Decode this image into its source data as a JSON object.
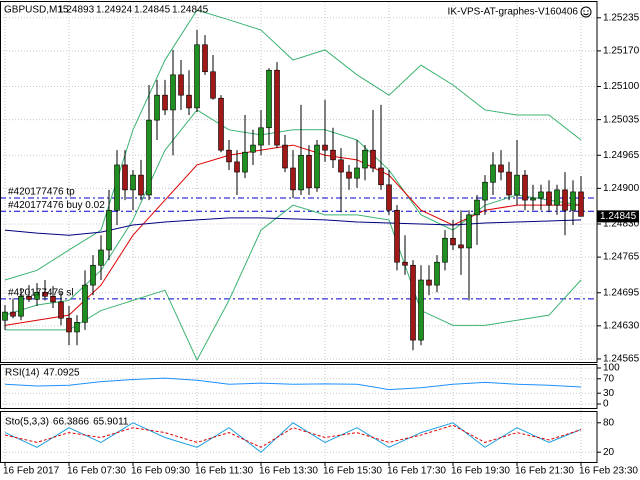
{
  "chart_data": [
    {
      "type": "candlestick",
      "title": "GBPUSD,M15",
      "watermark": "IK-VPS-AT-graphes-V160406",
      "categories": [
        "16 Feb 2017",
        null,
        null,
        null,
        null,
        null,
        null,
        null,
        "16 Feb 07:30",
        null,
        null,
        null,
        null,
        null,
        null,
        null,
        "16 Feb 09:30",
        null,
        null,
        null,
        null,
        null,
        null,
        null,
        "16 Feb 11:30",
        null,
        null,
        null,
        null,
        null,
        null,
        null,
        "16 Feb 13:30",
        null,
        null,
        null,
        null,
        null,
        null,
        null,
        "16 Feb 15:30",
        null,
        null,
        null,
        null,
        null,
        null,
        null,
        "16 Feb 17:30",
        null,
        null,
        null,
        null,
        null,
        null,
        null,
        "16 Feb 19:30",
        null,
        null,
        null,
        null,
        null,
        null,
        null,
        "16 Feb 21:30",
        null,
        null,
        null,
        null,
        null,
        null,
        null,
        "16 Feb 23:30"
      ],
      "open": [
        1.24641,
        1.24657,
        1.24649,
        1.24688,
        1.24682,
        1.24696,
        1.24688,
        1.24677,
        1.24645,
        1.24618,
        1.24637,
        1.2471,
        1.24749,
        1.24779,
        1.24857,
        1.24946,
        1.24897,
        1.24926,
        1.24887,
        1.25034,
        1.25083,
        1.25054,
        1.25123,
        1.25083,
        1.25058,
        1.25182,
        1.25129,
        1.25077,
        1.24975,
        1.24952,
        1.24932,
        1.24971,
        1.24985,
        1.25019,
        1.25132,
        1.24985,
        1.2494,
        1.24897,
        1.24965,
        1.24901,
        1.24985,
        1.24975,
        1.24956,
        1.24932,
        1.2492,
        1.2494,
        1.24975,
        1.2494,
        1.24907,
        1.24857,
        1.24755,
        1.24749,
        1.24602,
        1.2472,
        1.2471,
        1.24755,
        1.24802,
        1.24789,
        1.24783,
        1.24848,
        1.24877,
        1.24912,
        1.24946,
        1.24932,
        1.24887,
        1.24926,
        1.24877,
        1.24881,
        1.24893,
        1.24867,
        1.24897,
        1.24857,
        1.24893
      ],
      "high": [
        1.24671,
        1.24684,
        1.24704,
        1.2471,
        1.24714,
        1.2472,
        1.24708,
        1.24696,
        1.24669,
        1.24651,
        1.24739,
        1.24769,
        1.24808,
        1.24897,
        1.24975,
        1.24975,
        1.24936,
        1.24956,
        1.25103,
        1.25113,
        1.25113,
        1.25172,
        1.25152,
        1.25132,
        1.25211,
        1.25201,
        1.25162,
        1.25083,
        1.24995,
        1.24975,
        1.25044,
        1.25015,
        1.25054,
        1.25136,
        1.25148,
        1.25005,
        1.24975,
        1.25064,
        1.24985,
        1.24995,
        1.25074,
        1.25019,
        1.24979,
        1.24946,
        1.24995,
        1.24985,
        1.25054,
        1.25064,
        1.24936,
        1.24867,
        1.24808,
        1.24759,
        1.24749,
        1.24749,
        1.24769,
        1.24818,
        1.24838,
        1.24857,
        1.24857,
        1.24887,
        1.24926,
        1.24971,
        1.24975,
        1.24952,
        1.24995,
        1.24936,
        1.24907,
        1.24907,
        1.24916,
        1.24907,
        1.24932,
        1.24916,
        1.24924
      ],
      "low": [
        1.24622,
        1.24645,
        1.24641,
        1.24677,
        1.24669,
        1.2468,
        1.24665,
        1.24631,
        1.24592,
        1.24592,
        1.24622,
        1.2469,
        1.2472,
        1.24759,
        1.24828,
        1.24877,
        1.24857,
        1.24877,
        1.24877,
        1.24995,
        1.25044,
        1.24965,
        1.25054,
        1.25044,
        1.2505,
        1.25123,
        1.25074,
        1.24971,
        1.24936,
        1.24887,
        1.2492,
        1.24946,
        1.24965,
        1.24985,
        1.24979,
        1.24932,
        1.24881,
        1.24887,
        1.24887,
        1.24893,
        1.24952,
        1.2494,
        1.24853,
        1.24897,
        1.24901,
        1.24916,
        1.24932,
        1.24897,
        1.24848,
        1.24739,
        1.2473,
        1.24582,
        1.24592,
        1.2469,
        1.24696,
        1.24739,
        1.24779,
        1.2473,
        1.2468,
        1.24789,
        1.24848,
        1.24887,
        1.24916,
        1.24877,
        1.24867,
        1.24857,
        1.24857,
        1.24857,
        1.24853,
        1.24848,
        1.24808,
        1.24828,
        1.24845
      ],
      "close": [
        1.24657,
        1.24649,
        1.24688,
        1.24682,
        1.24696,
        1.24688,
        1.24677,
        1.24645,
        1.24618,
        1.24637,
        1.2471,
        1.24749,
        1.24779,
        1.24857,
        1.24946,
        1.24897,
        1.24926,
        1.24887,
        1.25034,
        1.25083,
        1.25054,
        1.25123,
        1.25083,
        1.25058,
        1.25182,
        1.25129,
        1.25077,
        1.24975,
        1.24952,
        1.24932,
        1.24971,
        1.24985,
        1.25019,
        1.25132,
        1.24985,
        1.2494,
        1.24897,
        1.24965,
        1.24901,
        1.24985,
        1.24975,
        1.24956,
        1.24932,
        1.2492,
        1.2494,
        1.24975,
        1.2494,
        1.24907,
        1.24857,
        1.24755,
        1.24749,
        1.24602,
        1.2472,
        1.2471,
        1.24755,
        1.24802,
        1.24789,
        1.24783,
        1.24848,
        1.24877,
        1.24912,
        1.24946,
        1.24932,
        1.24887,
        1.24926,
        1.24877,
        1.24881,
        1.24893,
        1.24867,
        1.24897,
        1.24857,
        1.24893,
        1.24845
      ],
      "bull_color": "#1f8f1f",
      "bear_color": "#a01818",
      "overlay_x": [
        0,
        4,
        8,
        12,
        16,
        20,
        24,
        28,
        32,
        36,
        40,
        44,
        48,
        52,
        56,
        60,
        64,
        68,
        72
      ],
      "overlays": [
        {
          "color": "#3cb371",
          "values": [
            1.2472,
            1.24739,
            1.24779,
            1.24818,
            1.25015,
            1.25152,
            1.2525,
            1.25231,
            1.25211,
            1.25152,
            1.25172,
            1.25123,
            1.25083,
            1.25142,
            1.25103,
            1.25054,
            1.25044,
            1.25044,
            1.24995
          ]
        },
        {
          "color": "#3cb371",
          "values": [
            1.24651,
            1.24671,
            1.2468,
            1.24739,
            1.24838,
            1.24975,
            1.25054,
            1.25015,
            1.25005,
            1.25015,
            1.25015,
            1.24995,
            1.24936,
            1.24848,
            1.24818,
            1.24867,
            1.24887,
            1.24877,
            1.24867
          ]
        },
        {
          "color": "#3cb371",
          "values": [
            1.24622,
            1.24622,
            1.24622,
            1.2466,
            1.2468,
            1.247,
            1.24563,
            1.2468,
            1.24818,
            1.24867,
            1.24848,
            1.24848,
            1.24838,
            1.2466,
            1.24631,
            1.24631,
            1.24641,
            1.24651,
            1.2472
          ]
        },
        {
          "color": "#e00000",
          "values": [
            1.24631,
            1.24641,
            1.24651,
            1.2471,
            1.24808,
            1.24877,
            1.24946,
            1.24965,
            1.24975,
            1.24985,
            1.24965,
            1.24956,
            1.24926,
            1.24857,
            1.24828,
            1.24857,
            1.24867,
            1.24867,
            1.24867
          ]
        },
        {
          "color": "#000080",
          "values": [
            1.24818,
            1.24812,
            1.24808,
            1.24814,
            1.24828,
            1.24834,
            1.24838,
            1.24842,
            1.24842,
            1.2484,
            1.24838,
            1.24834,
            1.24832,
            1.2483,
            1.24828,
            1.24832,
            1.24834,
            1.24836,
            1.24838
          ]
        }
      ],
      "orders": [
        {
          "label": "#420177476 tp",
          "price": 1.24881
        },
        {
          "label": "#420177476 buy 0.02",
          "price": 1.24855
        },
        {
          "label": "#420177476 sl",
          "price": 1.24683
        }
      ],
      "order_color": "#0000cd",
      "ylim": [
        1.24559,
        1.25266
      ],
      "yticks": [
        1.25235,
        {
          "value": 1.2517,
          "label": "1.25170"
        },
        {
          "value": 1.251,
          "label": "1.25100"
        },
        1.25035,
        1.24965,
        {
          "value": 1.249,
          "label": "1.24900"
        },
        {
          "value": 1.2483,
          "label": "1.24830"
        },
        1.24765,
        1.24695,
        {
          "value": 1.2463,
          "label": "1.24630"
        },
        1.24565
      ],
      "grid": true
    },
    {
      "type": "line",
      "title": "RSI(14)",
      "x": [
        0,
        4,
        8,
        12,
        16,
        20,
        24,
        28,
        32,
        36,
        40,
        44,
        48,
        52,
        56,
        60,
        64,
        68,
        72
      ],
      "series": [
        {
          "color": "#1e90ff",
          "values": [
            55,
            50,
            52,
            62,
            68,
            72,
            66,
            55,
            58,
            55,
            56,
            55,
            40,
            45,
            55,
            60,
            55,
            52,
            47.0925
          ]
        }
      ],
      "ylim": [
        0,
        100
      ],
      "yticks": [
        100,
        70,
        30,
        0
      ],
      "grid": true
    },
    {
      "type": "line",
      "title": "Sto(5,3,3)",
      "x": [
        0,
        4,
        8,
        12,
        16,
        20,
        24,
        28,
        32,
        36,
        40,
        44,
        48,
        52,
        56,
        60,
        64,
        68,
        72
      ],
      "series": [
        {
          "color": "#20a0e0",
          "values": [
            60,
            30,
            70,
            40,
            80,
            50,
            30,
            70,
            20,
            80,
            40,
            70,
            30,
            60,
            80,
            30,
            70,
            40,
            66.3866
          ]
        },
        {
          "color": "#e00000",
          "dash": true,
          "values": [
            55,
            40,
            60,
            50,
            70,
            60,
            40,
            60,
            30,
            70,
            50,
            60,
            40,
            55,
            75,
            40,
            60,
            45,
            65.9011
          ]
        }
      ],
      "ylim": [
        0,
        100
      ],
      "yticks": [
        80,
        20
      ],
      "grid": true
    }
  ]
}
